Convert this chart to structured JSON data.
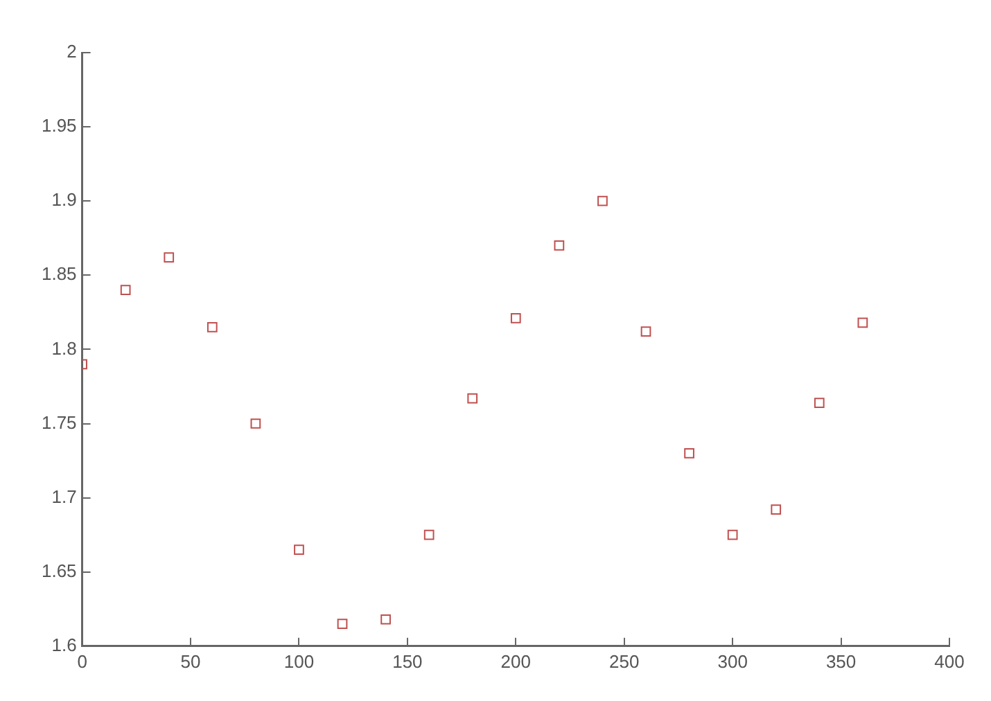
{
  "chart_data": {
    "type": "scatter",
    "x": [
      0,
      20,
      40,
      60,
      80,
      100,
      120,
      140,
      160,
      180,
      200,
      220,
      240,
      260,
      280,
      300,
      320,
      340,
      360
    ],
    "series": [
      {
        "color": "#c05050",
        "values": [
          1.79,
          1.84,
          1.862,
          1.815,
          1.75,
          1.665,
          1.615,
          1.618,
          1.675,
          1.767,
          1.821,
          1.87,
          1.9,
          1.812,
          1.73,
          1.675,
          1.692,
          1.764,
          1.818
        ]
      }
    ],
    "xlim": [
      0,
      400
    ],
    "xticks": [
      0,
      50,
      100,
      150,
      200,
      250,
      300,
      350,
      400
    ],
    "ylim": [
      1.6,
      2
    ],
    "yticks": [
      1.6,
      1.65,
      1.7,
      1.75,
      1.8,
      1.85,
      1.9,
      1.95,
      2
    ],
    "marker": "square",
    "grid": false,
    "legend": false
  }
}
